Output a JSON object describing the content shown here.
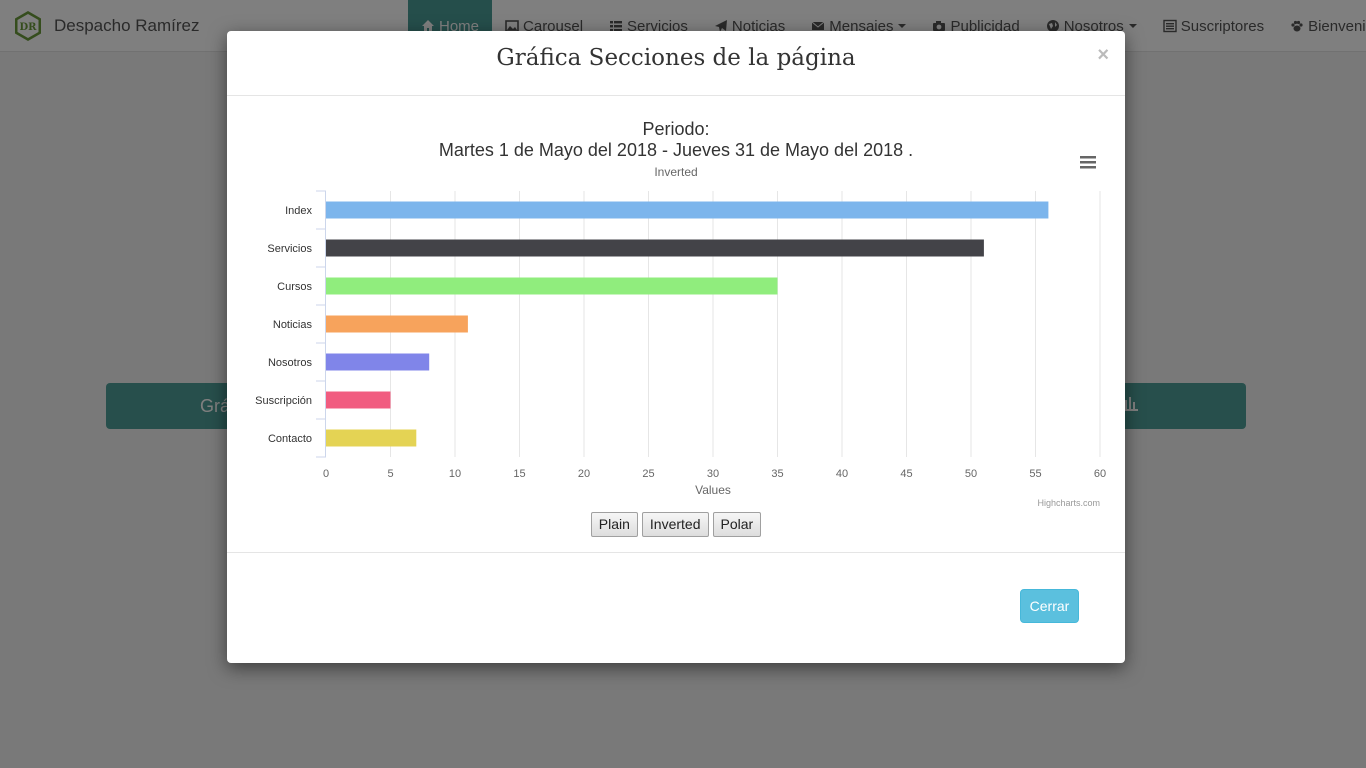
{
  "brand": {
    "name": "Despacho Ramírez",
    "logo_text": "DR"
  },
  "nav": [
    {
      "label": "Home",
      "icon": "home-icon",
      "active": true
    },
    {
      "label": "Carousel",
      "icon": "picture-icon"
    },
    {
      "label": "Servicios",
      "icon": "list-icon"
    },
    {
      "label": "Noticias",
      "icon": "send-icon"
    },
    {
      "label": "Mensajes",
      "icon": "envelope-icon",
      "dropdown": true
    },
    {
      "label": "Publicidad",
      "icon": "camera-icon"
    },
    {
      "label": "Nosotros",
      "icon": "globe-icon",
      "dropdown": true
    },
    {
      "label": "Suscriptores",
      "icon": "list-alt-icon"
    },
    {
      "label": "Bienvenida",
      "icon": "paw-icon"
    }
  ],
  "page": {
    "bar_label": "Grá"
  },
  "modal": {
    "title": "Gráfica Secciones de la página",
    "close_symbol": "×",
    "toggle_buttons": [
      "Plain",
      "Inverted",
      "Polar"
    ],
    "close_button": "Cerrar"
  },
  "colors": {
    "accent": "#4e9e98",
    "info_button": "#5bc0de"
  },
  "chart_data": {
    "type": "bar",
    "title": "Periodo:",
    "title_line2": "Martes 1 de Mayo del 2018 - Jueves 31 de Mayo del 2018 .",
    "subtitle": "Inverted",
    "xlabel": "Values",
    "categories": [
      "Index",
      "Servicios",
      "Cursos",
      "Noticias",
      "Nosotros",
      "Suscripción",
      "Contacto"
    ],
    "values": [
      56,
      51,
      35,
      11,
      8,
      5,
      7
    ],
    "colors": [
      "#7cb5ec",
      "#434348",
      "#90ed7d",
      "#f7a35c",
      "#8085e9",
      "#f15c80",
      "#e4d354"
    ],
    "xlim": [
      0,
      60
    ],
    "ticks": [
      0,
      5,
      10,
      15,
      20,
      25,
      30,
      35,
      40,
      45,
      50,
      55,
      60
    ],
    "grid": true,
    "credits": "Highcharts.com",
    "menu_icon": "hamburger-menu-icon"
  }
}
